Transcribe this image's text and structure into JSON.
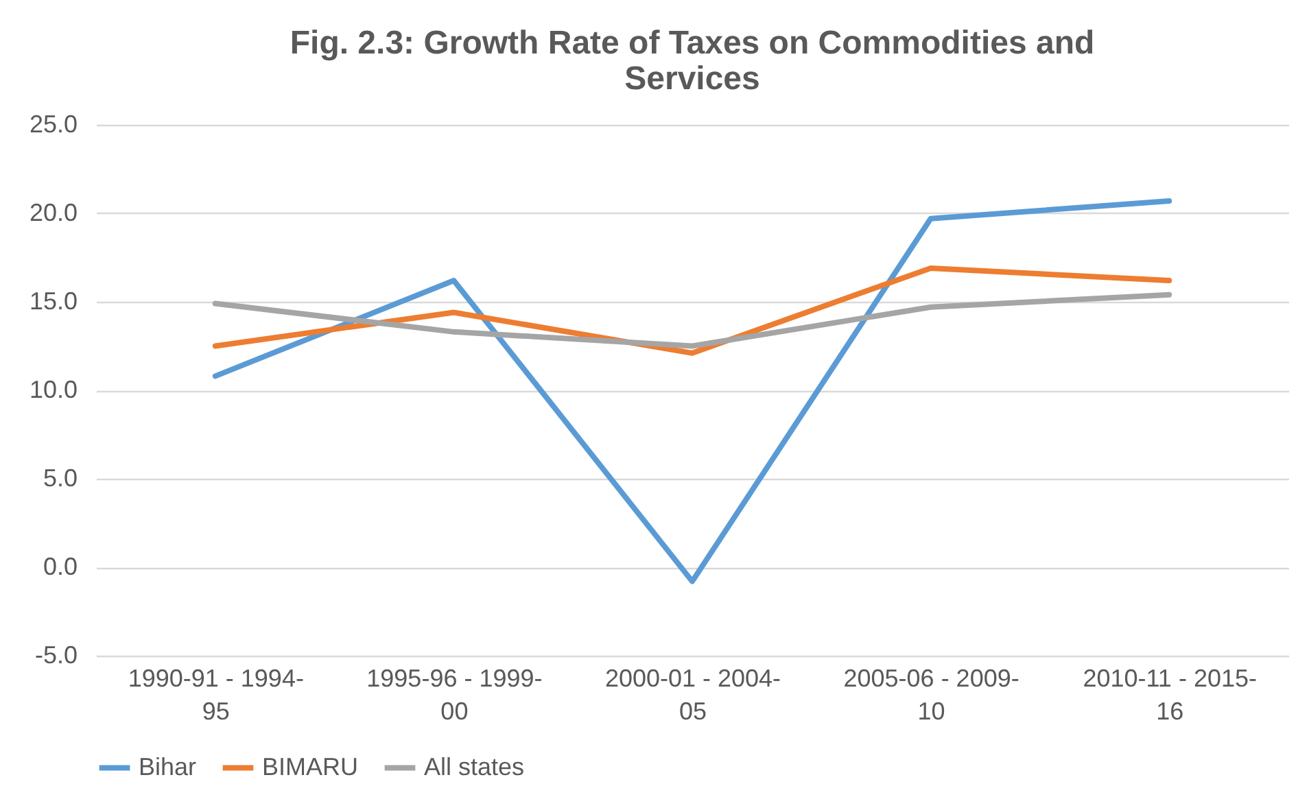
{
  "chart_data": {
    "type": "line",
    "title": "Fig. 2.3: Growth Rate of Taxes on Commodities and Services",
    "categories": [
      "1990-91 - 1994-95",
      "1995-96 - 1999-00",
      "2000-01 - 2004-05",
      "2005-06 - 2009-10",
      "2010-11 - 2015-16"
    ],
    "series": [
      {
        "name": "Bihar",
        "color": "#5b9bd5",
        "values": [
          10.8,
          16.2,
          -0.8,
          19.7,
          20.7
        ]
      },
      {
        "name": "BIMARU",
        "color": "#ed7d31",
        "values": [
          12.5,
          14.4,
          12.1,
          16.9,
          16.2
        ]
      },
      {
        "name": "All states",
        "color": "#a5a5a5",
        "values": [
          14.9,
          13.3,
          12.5,
          14.7,
          15.4
        ]
      }
    ],
    "ylim": [
      -5,
      25
    ],
    "yticks": [
      {
        "value": -5,
        "label": "-5.0"
      },
      {
        "value": 0,
        "label": "0.0"
      },
      {
        "value": 5,
        "label": "5.0"
      },
      {
        "value": 10,
        "label": "10.0"
      },
      {
        "value": 15,
        "label": "15.0"
      },
      {
        "value": 20,
        "label": "20.0"
      },
      {
        "value": 25,
        "label": "25.0"
      }
    ],
    "grid": "y",
    "legend": "bottom",
    "marker": "none",
    "line_style": "solid"
  }
}
